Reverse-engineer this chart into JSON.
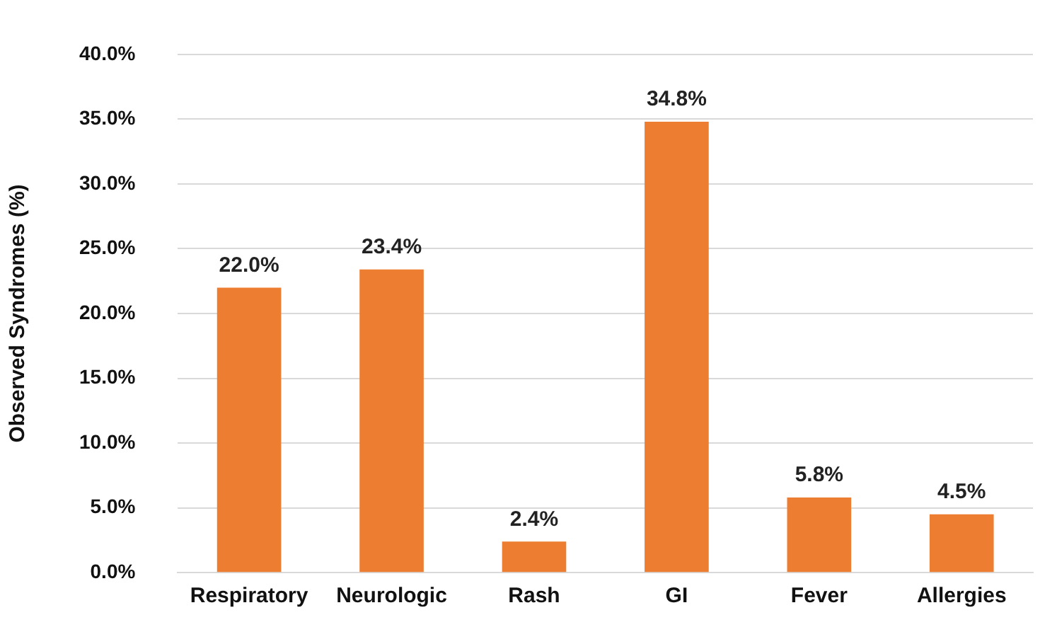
{
  "chart_data": {
    "type": "bar",
    "ylabel": "Observed Syndromes (%)",
    "categories": [
      "Respiratory",
      "Neurologic",
      "Rash",
      "GI",
      "Fever",
      "Allergies"
    ],
    "values": [
      22.0,
      23.4,
      2.4,
      34.8,
      5.8,
      4.5
    ],
    "color": "#ed7d31",
    "value_labels": [
      "22.0%",
      "23.4%",
      "2.4%",
      "34.8%",
      "5.8%",
      "4.5%"
    ],
    "ylim": [
      0,
      40
    ],
    "yticks": [
      {
        "value": 0,
        "label": "0.0%"
      },
      {
        "value": 5,
        "label": "5.0%"
      },
      {
        "value": 10,
        "label": "10.0%"
      },
      {
        "value": 15,
        "label": "15.0%"
      },
      {
        "value": 20,
        "label": "20.0%"
      },
      {
        "value": 25,
        "label": "25.0%"
      },
      {
        "value": 30,
        "label": "30.0%"
      },
      {
        "value": 35,
        "label": "35.0%"
      },
      {
        "value": 40,
        "label": "40.0%"
      }
    ],
    "grid": "y",
    "legend": false
  }
}
